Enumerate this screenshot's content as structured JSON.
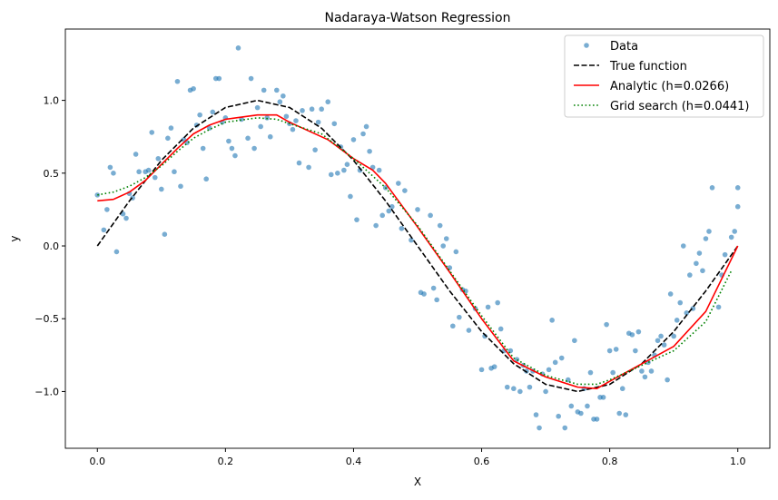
{
  "chart_data": {
    "type": "scatter",
    "title": "Nadaraya-Watson Regression",
    "xlabel": "X",
    "ylabel": "y",
    "xlim": [
      -0.05,
      1.05
    ],
    "ylim": [
      -1.39,
      1.49
    ],
    "xticks": [
      0.0,
      0.2,
      0.4,
      0.6,
      0.8,
      1.0
    ],
    "xtick_labels": [
      "0.0",
      "0.2",
      "0.4",
      "0.6",
      "0.8",
      "1.0"
    ],
    "yticks": [
      -1.0,
      -0.5,
      0.0,
      0.5,
      1.0
    ],
    "ytick_labels": [
      "−1.0",
      "−0.5",
      "0.0",
      "0.5",
      "1.0"
    ],
    "grid": false,
    "legend_position": "top-right",
    "legend": [
      "Data",
      "True function",
      "Analytic (h=0.0266)",
      "Grid search (h=0.0441)"
    ],
    "colors": {
      "data": "#1f77b4",
      "true": "#000000",
      "analytic": "#ff0000",
      "grid": "#008000"
    },
    "scatter": {
      "x": [
        0.0,
        0.01,
        0.015,
        0.02,
        0.025,
        0.03,
        0.04,
        0.045,
        0.05,
        0.055,
        0.06,
        0.065,
        0.075,
        0.08,
        0.085,
        0.09,
        0.095,
        0.1,
        0.105,
        0.11,
        0.115,
        0.12,
        0.125,
        0.13,
        0.135,
        0.14,
        0.145,
        0.15,
        0.155,
        0.16,
        0.165,
        0.17,
        0.175,
        0.18,
        0.185,
        0.19,
        0.195,
        0.2,
        0.205,
        0.21,
        0.215,
        0.22,
        0.225,
        0.235,
        0.24,
        0.245,
        0.25,
        0.255,
        0.26,
        0.265,
        0.27,
        0.28,
        0.285,
        0.29,
        0.295,
        0.3,
        0.305,
        0.31,
        0.315,
        0.32,
        0.33,
        0.335,
        0.34,
        0.345,
        0.35,
        0.36,
        0.365,
        0.37,
        0.375,
        0.38,
        0.385,
        0.39,
        0.395,
        0.4,
        0.405,
        0.41,
        0.415,
        0.42,
        0.425,
        0.43,
        0.435,
        0.44,
        0.445,
        0.45,
        0.455,
        0.46,
        0.47,
        0.475,
        0.48,
        0.49,
        0.5,
        0.505,
        0.51,
        0.52,
        0.525,
        0.53,
        0.535,
        0.54,
        0.545,
        0.55,
        0.555,
        0.56,
        0.565,
        0.57,
        0.575,
        0.58,
        0.59,
        0.6,
        0.605,
        0.61,
        0.615,
        0.62,
        0.625,
        0.63,
        0.635,
        0.64,
        0.645,
        0.65,
        0.655,
        0.66,
        0.665,
        0.67,
        0.675,
        0.68,
        0.685,
        0.69,
        0.695,
        0.7,
        0.705,
        0.71,
        0.715,
        0.72,
        0.725,
        0.73,
        0.735,
        0.74,
        0.745,
        0.75,
        0.755,
        0.76,
        0.765,
        0.77,
        0.775,
        0.78,
        0.785,
        0.79,
        0.795,
        0.8,
        0.805,
        0.81,
        0.815,
        0.82,
        0.825,
        0.83,
        0.835,
        0.84,
        0.845,
        0.85,
        0.855,
        0.86,
        0.865,
        0.87,
        0.875,
        0.88,
        0.885,
        0.89,
        0.895,
        0.9,
        0.905,
        0.91,
        0.915,
        0.92,
        0.925,
        0.93,
        0.935,
        0.94,
        0.945,
        0.95,
        0.955,
        0.96,
        0.97,
        0.975,
        0.98,
        0.99,
        0.995,
        1.0,
        1.0
      ],
      "y": [
        0.35,
        0.11,
        0.25,
        0.54,
        0.5,
        -0.04,
        0.22,
        0.19,
        0.36,
        0.33,
        0.63,
        0.51,
        0.51,
        0.52,
        0.78,
        0.47,
        0.6,
        0.39,
        0.08,
        0.74,
        0.81,
        0.51,
        1.13,
        0.41,
        0.73,
        0.71,
        1.07,
        1.08,
        0.83,
        0.9,
        0.67,
        0.46,
        0.81,
        0.92,
        1.15,
        1.15,
        0.85,
        0.88,
        0.72,
        0.67,
        0.62,
        1.36,
        0.87,
        0.74,
        1.15,
        0.67,
        0.95,
        0.82,
        1.07,
        0.88,
        0.75,
        1.07,
        0.99,
        1.03,
        0.89,
        0.84,
        0.8,
        0.86,
        0.57,
        0.93,
        0.54,
        0.94,
        0.66,
        0.85,
        0.94,
        0.99,
        0.49,
        0.84,
        0.5,
        0.68,
        0.52,
        0.56,
        0.34,
        0.73,
        0.18,
        0.52,
        0.77,
        0.82,
        0.65,
        0.54,
        0.14,
        0.52,
        0.21,
        0.4,
        0.24,
        0.27,
        0.43,
        0.12,
        0.38,
        0.04,
        0.25,
        -0.32,
        -0.33,
        0.21,
        -0.29,
        -0.37,
        0.14,
        0.0,
        0.05,
        -0.15,
        -0.55,
        -0.04,
        -0.49,
        -0.3,
        -0.31,
        -0.58,
        -0.43,
        -0.85,
        -0.62,
        -0.42,
        -0.84,
        -0.83,
        -0.39,
        -0.57,
        -0.72,
        -0.97,
        -0.72,
        -0.98,
        -0.78,
        -1.0,
        -0.82,
        -0.86,
        -0.97,
        -0.86,
        -1.16,
        -1.25,
        -0.88,
        -1.0,
        -0.85,
        -0.51,
        -0.8,
        -1.17,
        -0.77,
        -1.25,
        -0.92,
        -1.1,
        -0.65,
        -1.14,
        -1.15,
        -0.98,
        -1.1,
        -0.87,
        -1.19,
        -1.19,
        -1.04,
        -1.04,
        -0.54,
        -0.72,
        -0.87,
        -0.71,
        -1.15,
        -0.98,
        -1.16,
        -0.6,
        -0.61,
        -0.72,
        -0.59,
        -0.86,
        -0.9,
        -0.8,
        -0.86,
        -0.75,
        -0.65,
        -0.62,
        -0.68,
        -0.92,
        -0.33,
        -0.62,
        -0.51,
        -0.39,
        0.0,
        -0.46,
        -0.2,
        -0.43,
        -0.12,
        -0.05,
        -0.17,
        0.05,
        0.1,
        0.4,
        -0.42,
        -0.2,
        -0.06,
        0.06,
        0.1,
        0.4,
        0.27
      ]
    },
    "series": [
      {
        "name": "True function",
        "style": "dashed",
        "x": [
          0,
          0.05,
          0.1,
          0.15,
          0.2,
          0.25,
          0.3,
          0.35,
          0.4,
          0.45,
          0.5,
          0.55,
          0.6,
          0.65,
          0.7,
          0.75,
          0.8,
          0.85,
          0.9,
          0.95,
          1.0
        ],
        "y": [
          0,
          0.309,
          0.588,
          0.809,
          0.951,
          1,
          0.951,
          0.809,
          0.588,
          0.309,
          0,
          -0.309,
          -0.588,
          -0.809,
          -0.951,
          -1,
          -0.951,
          -0.809,
          -0.588,
          -0.309,
          0
        ]
      },
      {
        "name": "Analytic (h=0.0266)",
        "style": "solid",
        "x": [
          0,
          0.025,
          0.05,
          0.075,
          0.1,
          0.125,
          0.15,
          0.175,
          0.2,
          0.25,
          0.28,
          0.3,
          0.33,
          0.36,
          0.4,
          0.43,
          0.45,
          0.5,
          0.55,
          0.6,
          0.65,
          0.7,
          0.75,
          0.78,
          0.8,
          0.85,
          0.9,
          0.95,
          1.0
        ],
        "y": [
          0.31,
          0.32,
          0.37,
          0.45,
          0.56,
          0.67,
          0.77,
          0.83,
          0.87,
          0.9,
          0.9,
          0.85,
          0.79,
          0.73,
          0.6,
          0.52,
          0.43,
          0.13,
          -0.18,
          -0.5,
          -0.79,
          -0.9,
          -0.97,
          -0.98,
          -0.93,
          -0.81,
          -0.69,
          -0.45,
          0.0
        ]
      },
      {
        "name": "Grid search (h=0.0441)",
        "style": "dotted",
        "x": [
          0,
          0.025,
          0.05,
          0.075,
          0.1,
          0.125,
          0.15,
          0.175,
          0.2,
          0.25,
          0.28,
          0.3,
          0.35,
          0.4,
          0.45,
          0.5,
          0.55,
          0.6,
          0.65,
          0.7,
          0.75,
          0.78,
          0.8,
          0.85,
          0.9,
          0.95,
          0.99
        ],
        "y": [
          0.35,
          0.37,
          0.41,
          0.47,
          0.55,
          0.65,
          0.74,
          0.8,
          0.85,
          0.88,
          0.87,
          0.84,
          0.77,
          0.6,
          0.4,
          0.14,
          -0.17,
          -0.48,
          -0.77,
          -0.89,
          -0.95,
          -0.95,
          -0.92,
          -0.82,
          -0.72,
          -0.52,
          -0.17
        ]
      }
    ]
  }
}
